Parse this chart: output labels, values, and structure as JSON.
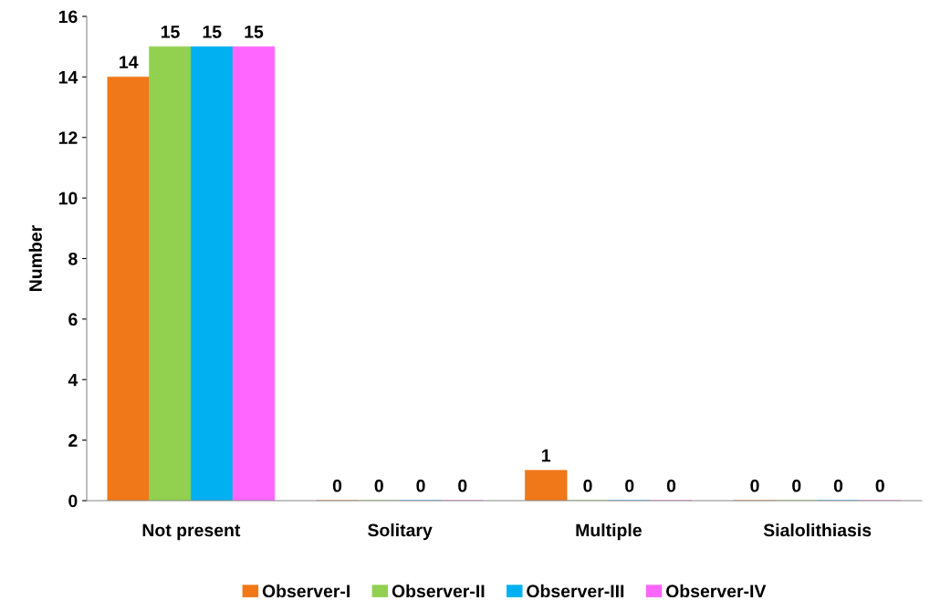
{
  "chart_data": {
    "type": "bar",
    "ylabel": "Number",
    "categories": [
      "Not present",
      "Solitary",
      "Multiple",
      "Sialolithiasis"
    ],
    "series": [
      {
        "name": "Observer-I",
        "color": "#f07818",
        "values": [
          14,
          0,
          1,
          0
        ]
      },
      {
        "name": "Observer-II",
        "color": "#92d050",
        "values": [
          15,
          0,
          0,
          0
        ]
      },
      {
        "name": "Observer-III",
        "color": "#00b0f0",
        "values": [
          15,
          0,
          0,
          0
        ]
      },
      {
        "name": "Observer-IV",
        "color": "#ff66ff",
        "values": [
          15,
          0,
          0,
          0
        ]
      }
    ],
    "ylim": [
      0,
      16
    ],
    "yticks": [
      0,
      2,
      4,
      6,
      8,
      10,
      12,
      14,
      16
    ],
    "data_labels": true,
    "grid": false,
    "legend": "bottom"
  }
}
